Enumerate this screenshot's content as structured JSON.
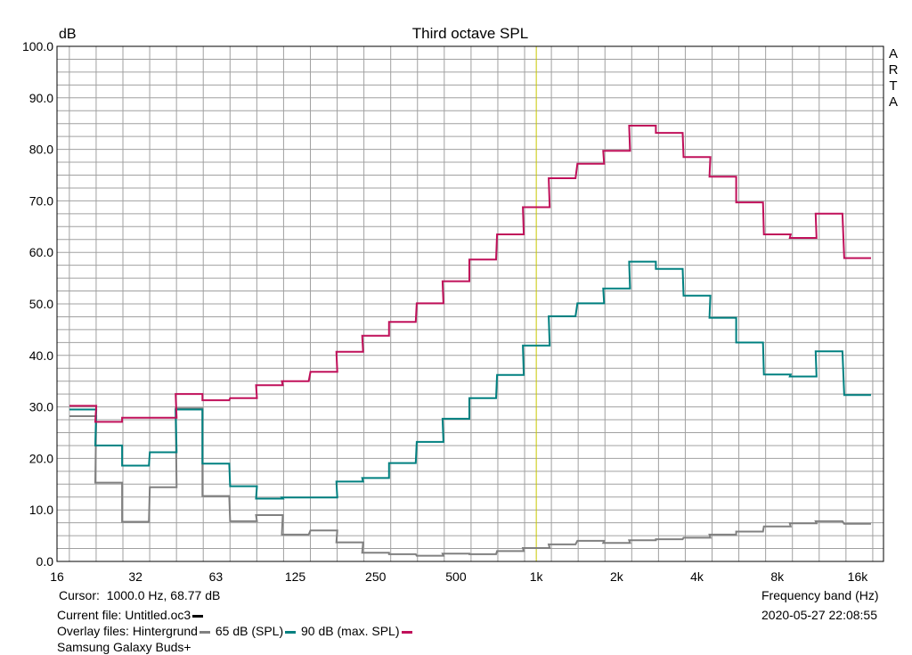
{
  "app": {
    "brand_vertical": "ARTA"
  },
  "footer": {
    "cursor_label": "Cursor:",
    "cursor_value": "1000.0 Hz, 68.77 dB",
    "current_file_label": "Current file:",
    "current_file_value": "Untitled.oc3",
    "overlay_label": "Overlay files:",
    "overlay_items": [
      "Hintergrund",
      "65 dB (SPL)",
      "90 dB (max. SPL)"
    ],
    "device_name": "Samsung Galaxy Buds+",
    "freq_band_label": "Frequency band (Hz)",
    "timestamp": "2020-05-27  22:08:55"
  },
  "colors": {
    "current_file": "#000000",
    "hintergrund": "#808080",
    "spl65": "#008080",
    "spl90": "#c0105a",
    "cursor_line": "#c8c800",
    "grid": "#a0a0a0"
  },
  "chart_data": {
    "type": "line",
    "step": true,
    "title": "Third octave SPL",
    "ylabel": "dB",
    "xlabel": "Frequency band (Hz)",
    "ylim": [
      0,
      100
    ],
    "y_ticks": [
      "0.0",
      "10.0",
      "20.0",
      "30.0",
      "40.0",
      "50.0",
      "60.0",
      "70.0",
      "80.0",
      "90.0",
      "100.0"
    ],
    "x_scale": "log",
    "x_ticks": [
      "16",
      "32",
      "63",
      "125",
      "250",
      "500",
      "1k",
      "2k",
      "4k",
      "8k",
      "16k"
    ],
    "cursor_x": 1000,
    "bands": [
      20,
      25,
      31.5,
      40,
      50,
      63,
      80,
      100,
      125,
      160,
      200,
      250,
      315,
      400,
      500,
      630,
      800,
      1000,
      1250,
      1600,
      2000,
      2500,
      3150,
      4000,
      5000,
      6300,
      8000,
      10000,
      12500,
      16000
    ],
    "series": [
      {
        "name": "Hintergrund",
        "color": "#808080",
        "values": [
          28.2,
          15.3,
          7.7,
          14.4,
          29.7,
          12.7,
          7.8,
          9.0,
          5.2,
          6.0,
          3.7,
          1.7,
          1.4,
          1.1,
          1.5,
          1.4,
          2.0,
          2.6,
          3.3,
          4.0,
          3.6,
          4.1,
          4.3,
          4.6,
          5.2,
          5.8,
          6.8,
          7.4,
          7.8,
          7.3
        ]
      },
      {
        "name": "65 dB (SPL)",
        "color": "#008080",
        "values": [
          29.5,
          22.5,
          18.6,
          21.2,
          29.5,
          19.0,
          14.6,
          12.2,
          12.4,
          12.4,
          15.5,
          16.2,
          19.1,
          23.2,
          27.7,
          31.7,
          36.2,
          41.9,
          47.6,
          50.1,
          53.0,
          58.2,
          56.8,
          51.6,
          47.3,
          42.5,
          36.3,
          35.9,
          40.8,
          32.3
        ]
      },
      {
        "name": "90 dB (max. SPL)",
        "color": "#c0105a",
        "values": [
          30.2,
          27.1,
          27.9,
          27.9,
          32.5,
          31.3,
          31.7,
          34.2,
          35.0,
          36.8,
          40.7,
          43.8,
          46.5,
          50.1,
          54.4,
          58.6,
          63.5,
          68.77,
          74.4,
          77.2,
          79.7,
          84.6,
          83.2,
          78.5,
          74.7,
          69.7,
          63.5,
          62.8,
          67.5,
          58.9
        ]
      }
    ]
  }
}
